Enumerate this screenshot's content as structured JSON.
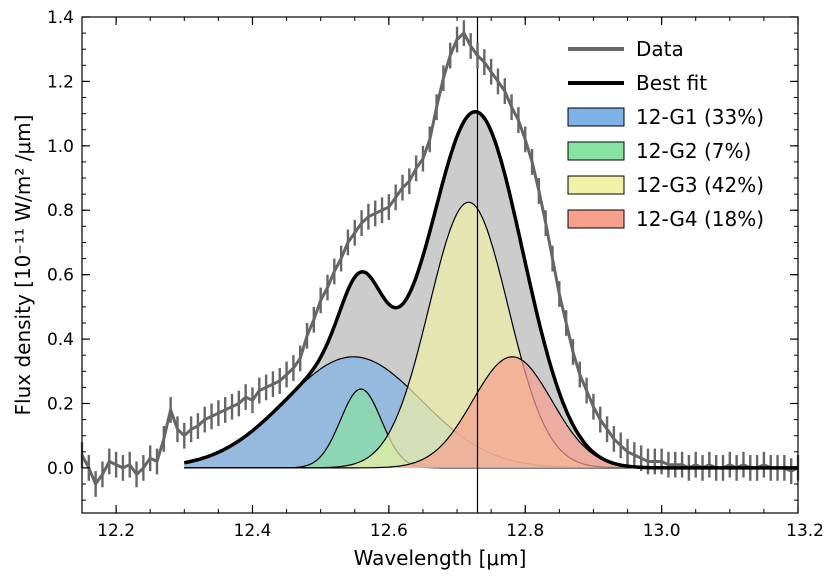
{
  "chart_data": {
    "type": "line",
    "xlabel": "Wavelength [μm]",
    "ylabel": "Flux density [10⁻¹¹ W/m² /μm]",
    "xlim": [
      12.15,
      13.2
    ],
    "ylim": [
      -0.14,
      1.4
    ],
    "xticks": [
      12.2,
      12.4,
      12.6,
      12.8,
      13.0,
      13.2
    ],
    "xtick_labels": [
      "12.2",
      "12.4",
      "12.6",
      "12.8",
      "13.0",
      "13.2"
    ],
    "yticks": [
      0.0,
      0.2,
      0.4,
      0.6,
      0.8,
      1.0,
      1.2,
      1.4
    ],
    "ytick_labels": [
      "0.0",
      "0.2",
      "0.4",
      "0.6",
      "0.8",
      "1.0",
      "1.2",
      "1.4"
    ],
    "grid": false,
    "legend_position": "top-right",
    "vertical_line_x": 12.73,
    "fit_range": [
      12.3,
      13.2
    ],
    "colors": {
      "data": "#666666",
      "best_fit": "#000000",
      "total_fill": "#cccccc",
      "g1": "#7fb2e6",
      "g2": "#88e3a4",
      "g3": "#f0f0a6",
      "g4": "#f8a08e"
    },
    "series": [
      {
        "name": "Data",
        "role": "data",
        "x": [
          12.15,
          12.16,
          12.17,
          12.18,
          12.19,
          12.2,
          12.21,
          12.22,
          12.23,
          12.24,
          12.25,
          12.26,
          12.27,
          12.28,
          12.29,
          12.3,
          12.31,
          12.32,
          12.33,
          12.34,
          12.35,
          12.36,
          12.37,
          12.38,
          12.39,
          12.4,
          12.41,
          12.42,
          12.43,
          12.44,
          12.45,
          12.46,
          12.47,
          12.48,
          12.49,
          12.5,
          12.51,
          12.52,
          12.53,
          12.54,
          12.55,
          12.56,
          12.57,
          12.58,
          12.59,
          12.6,
          12.61,
          12.62,
          12.63,
          12.64,
          12.65,
          12.66,
          12.67,
          12.68,
          12.69,
          12.7,
          12.71,
          12.72,
          12.73,
          12.74,
          12.75,
          12.76,
          12.77,
          12.78,
          12.79,
          12.8,
          12.81,
          12.82,
          12.83,
          12.84,
          12.85,
          12.86,
          12.87,
          12.88,
          12.89,
          12.9,
          12.91,
          12.92,
          12.93,
          12.94,
          12.95,
          12.96,
          12.97,
          12.98,
          12.99,
          13.0,
          13.01,
          13.02,
          13.03,
          13.04,
          13.05,
          13.06,
          13.07,
          13.08,
          13.09,
          13.1,
          13.11,
          13.12,
          13.13,
          13.14,
          13.15,
          13.16,
          13.17,
          13.18,
          13.19,
          13.2
        ],
        "y": [
          0.04,
          0.0,
          -0.05,
          -0.02,
          0.02,
          0.01,
          0.0,
          0.01,
          -0.02,
          0.0,
          0.03,
          0.02,
          0.09,
          0.18,
          0.12,
          0.1,
          0.12,
          0.13,
          0.15,
          0.16,
          0.17,
          0.18,
          0.19,
          0.2,
          0.22,
          0.21,
          0.24,
          0.25,
          0.26,
          0.27,
          0.29,
          0.31,
          0.34,
          0.41,
          0.46,
          0.52,
          0.56,
          0.61,
          0.65,
          0.7,
          0.73,
          0.76,
          0.78,
          0.79,
          0.8,
          0.81,
          0.84,
          0.87,
          0.89,
          0.93,
          0.96,
          1.02,
          1.12,
          1.21,
          1.28,
          1.33,
          1.35,
          1.31,
          1.28,
          1.26,
          1.23,
          1.2,
          1.17,
          1.12,
          1.08,
          1.02,
          0.95,
          0.86,
          0.76,
          0.65,
          0.54,
          0.45,
          0.36,
          0.29,
          0.24,
          0.19,
          0.15,
          0.12,
          0.09,
          0.07,
          0.05,
          0.04,
          0.03,
          0.02,
          0.02,
          0.02,
          0.01,
          0.01,
          0.01,
          0.0,
          0.01,
          0.0,
          0.01,
          0.0,
          0.0,
          0.01,
          0.0,
          0.01,
          0.0,
          0.0,
          0.01,
          0.0,
          0.0,
          0.0,
          -0.01,
          0.0
        ],
        "yerr": 0.04
      },
      {
        "name": "Best fit",
        "role": "fit"
      },
      {
        "name": "12-G1 (33%)",
        "role": "component",
        "center": 12.548,
        "amplitude": 0.345,
        "sigma": 0.1
      },
      {
        "name": "12-G2 (7%)",
        "role": "component",
        "center": 12.559,
        "amplitude": 0.245,
        "sigma": 0.03
      },
      {
        "name": "12-G3 (42%)",
        "role": "component",
        "center": 12.717,
        "amplitude": 0.825,
        "sigma": 0.058
      },
      {
        "name": "12-G4 (18%)",
        "role": "component",
        "center": 12.781,
        "amplitude": 0.345,
        "sigma": 0.058
      }
    ]
  }
}
